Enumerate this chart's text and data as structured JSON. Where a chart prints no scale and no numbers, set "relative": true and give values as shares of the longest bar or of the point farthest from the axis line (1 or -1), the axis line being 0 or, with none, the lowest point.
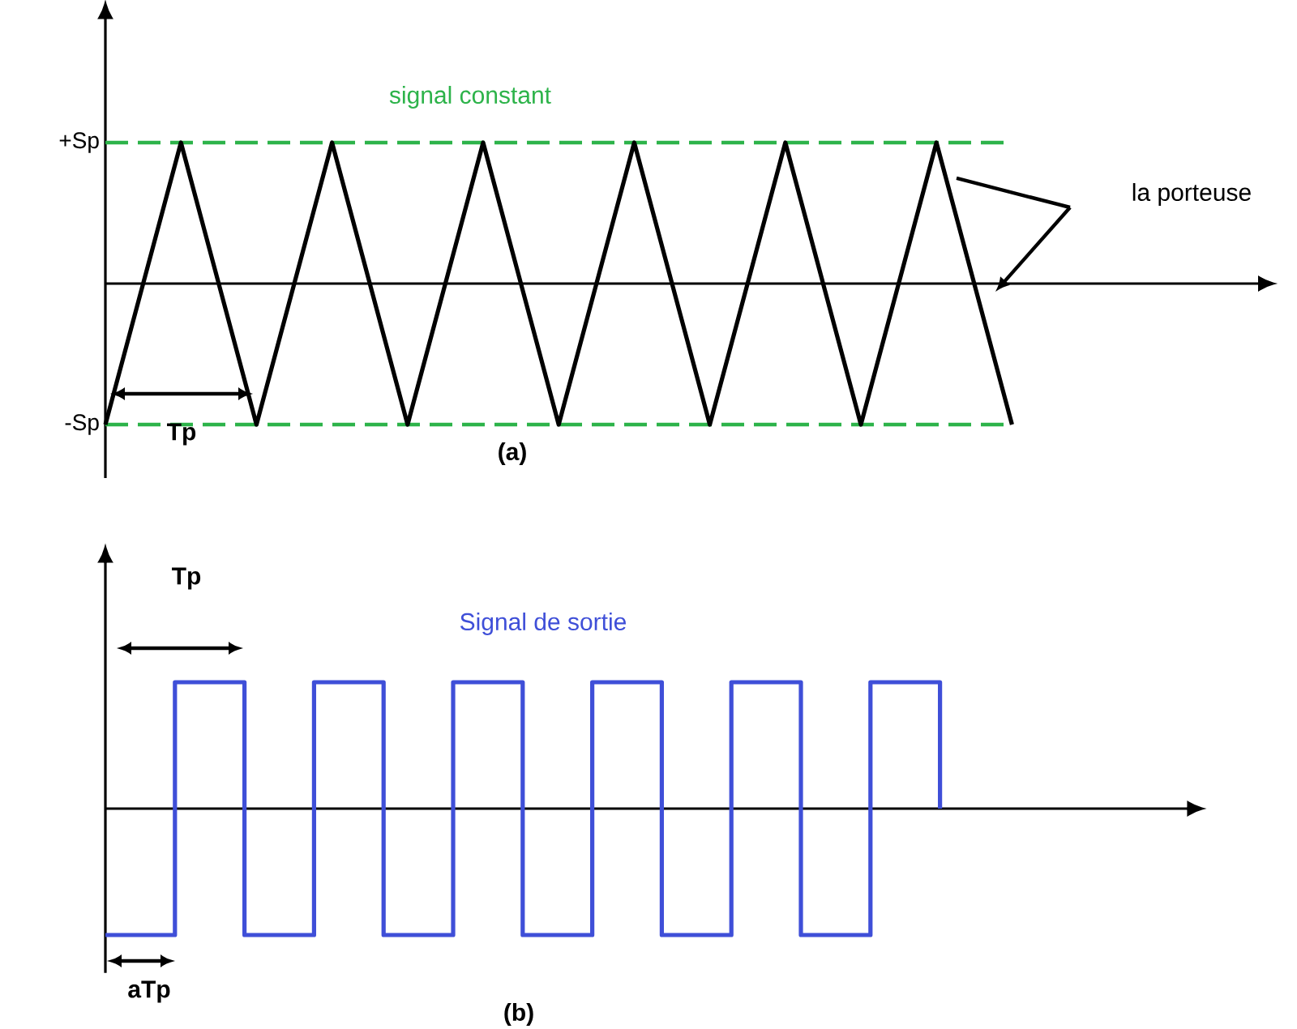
{
  "chart_data": [
    {
      "type": "line",
      "relative": true,
      "categories": [
        null,
        null,
        null,
        null,
        null,
        null,
        null,
        null,
        null,
        null,
        null,
        null,
        null
      ],
      "series": [
        {
          "color": "#000000",
          "values": [
            -1,
            1,
            -1,
            1,
            -1,
            1,
            -1,
            1,
            -1,
            1,
            -1,
            1,
            -1
          ]
        }
      ],
      "ref_lines": [
        {
          "axis": "y",
          "value": 1,
          "label": "+Sp",
          "color": "#2db34a",
          "line_style": "dashed"
        },
        {
          "axis": "y",
          "value": -1,
          "label": "-Sp",
          "color": "#2db34a",
          "line_style": "dashed"
        }
      ],
      "annotations": [
        "signal constant",
        "la porteuse",
        "Tp",
        "(a)"
      ]
    },
    {
      "type": "step",
      "relative": true,
      "categories": [
        null,
        null,
        null,
        null,
        null,
        null,
        null,
        null,
        null,
        null,
        null,
        null,
        null
      ],
      "series": [
        {
          "color": "#3f4fd8",
          "values": [
            -1,
            1,
            -1,
            1,
            -1,
            1,
            -1,
            1,
            -1,
            1,
            -1,
            1,
            0
          ]
        }
      ],
      "annotations": [
        "Tp",
        "Signal de sortie",
        "aTp",
        "(b)"
      ]
    }
  ]
}
